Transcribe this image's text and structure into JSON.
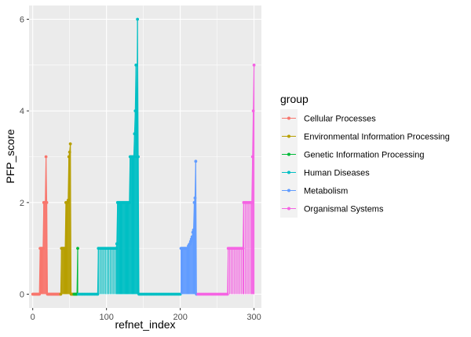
{
  "chart_data": {
    "type": "line",
    "xlabel": "refnet_index",
    "ylabel": "PFP_score",
    "xlim": [
      -5,
      310
    ],
    "ylim": [
      -0.3,
      6.3
    ],
    "x_ticks": [
      0,
      100,
      200,
      300
    ],
    "y_ticks": [
      0,
      2,
      4,
      6
    ],
    "grid": true,
    "legend": {
      "title": "group",
      "position": "right"
    },
    "series": [
      {
        "name": "Cellular Processes",
        "color": "#F8766D",
        "x": [
          0,
          1,
          2,
          3,
          4,
          5,
          6,
          7,
          8,
          9,
          10,
          11,
          12,
          13,
          14,
          15,
          16,
          17,
          18,
          19,
          20,
          21,
          22,
          23,
          24,
          25,
          26,
          27,
          28,
          29,
          30,
          31,
          32,
          33,
          34,
          35,
          36,
          37
        ],
        "y": [
          0,
          0,
          0,
          0,
          0,
          0,
          0,
          0,
          0,
          0,
          1,
          1,
          1,
          1,
          1,
          2,
          2,
          2,
          3,
          2,
          0,
          0,
          0,
          0,
          0,
          0,
          0,
          0,
          0,
          0,
          0,
          0,
          0,
          0,
          0,
          0,
          0,
          0
        ]
      },
      {
        "name": "Environmental Information Processing",
        "color": "#B79F00",
        "x": [
          38,
          39,
          40,
          41,
          42,
          43,
          44,
          45,
          46,
          47,
          48,
          49,
          50,
          51,
          52,
          53,
          54,
          55
        ],
        "y": [
          0,
          1,
          1,
          1,
          1,
          1,
          1,
          2,
          2,
          2,
          2.05,
          3,
          3.1,
          3.28,
          0,
          0,
          0,
          0
        ]
      },
      {
        "name": "Genetic Information Processing",
        "color": "#00BA38",
        "x": [
          56,
          57,
          58,
          59,
          60,
          61
        ],
        "y": [
          0,
          0,
          0,
          0,
          0,
          1
        ]
      },
      {
        "name": "Human Diseases",
        "color": "#00BFC4",
        "x": [
          62,
          64,
          66,
          68,
          70,
          72,
          74,
          76,
          78,
          80,
          82,
          84,
          86,
          88,
          89,
          91,
          93,
          95,
          97,
          99,
          101,
          103,
          105,
          107,
          109,
          111,
          113,
          114,
          115,
          116,
          117,
          118,
          119,
          120,
          121,
          122,
          123,
          124,
          125,
          126,
          127,
          128,
          129,
          130,
          131,
          132,
          133,
          134,
          135,
          136,
          137,
          138,
          139,
          140,
          141,
          142,
          143,
          144,
          146,
          148,
          150,
          152,
          154,
          156,
          158,
          160,
          162,
          164,
          166,
          168,
          170,
          172,
          174,
          176,
          178,
          180,
          182,
          184,
          186,
          188,
          190,
          192,
          194,
          196,
          198,
          200
        ],
        "y": [
          0,
          0,
          0,
          0,
          0,
          0,
          0,
          0,
          0,
          0,
          0,
          0,
          0,
          0,
          1,
          1,
          1,
          1,
          1,
          1,
          1,
          1,
          1,
          1,
          1,
          1,
          1,
          1.1,
          2,
          2,
          2,
          2,
          2,
          2,
          2,
          2,
          2,
          2,
          2,
          2,
          2,
          2,
          2,
          2,
          2,
          3,
          3,
          3,
          3,
          3,
          3,
          3.5,
          4,
          5,
          3,
          6,
          3,
          0,
          0,
          0,
          0,
          0,
          0,
          0,
          0,
          0,
          0,
          0,
          0,
          0,
          0,
          0,
          0,
          0,
          0,
          0,
          0,
          0,
          0,
          0,
          0,
          0,
          0,
          0,
          0,
          0
        ]
      },
      {
        "name": "Metabolism",
        "color": "#619CFF",
        "x": [
          201,
          202,
          203,
          204,
          205,
          206,
          207,
          208,
          209,
          210,
          211,
          212,
          213,
          214,
          215,
          216,
          217,
          218,
          219,
          220,
          221,
          222
        ],
        "y": [
          1,
          1,
          1,
          1,
          1,
          1,
          1,
          1,
          1,
          1,
          1.05,
          1.08,
          1.1,
          1.15,
          1.2,
          1.25,
          1.35,
          1.4,
          2,
          2.1,
          2.9,
          0
        ]
      },
      {
        "name": "Organismal Systems",
        "color": "#F564E3",
        "x": [
          224,
          226,
          228,
          230,
          232,
          234,
          236,
          238,
          240,
          242,
          244,
          246,
          248,
          250,
          252,
          254,
          256,
          258,
          260,
          262,
          264,
          265,
          267,
          269,
          271,
          273,
          275,
          277,
          279,
          281,
          283,
          285,
          286,
          288,
          290,
          292,
          294,
          296,
          297,
          298,
          299,
          300
        ],
        "y": [
          0,
          0,
          0,
          0,
          0,
          0,
          0,
          0,
          0,
          0,
          0,
          0,
          0,
          0,
          0,
          0,
          0,
          0,
          0,
          0,
          0,
          1,
          1,
          1,
          1,
          1,
          1,
          1,
          1,
          1,
          1,
          1,
          2,
          2,
          2,
          2,
          2,
          2,
          2,
          3,
          4,
          5
        ]
      }
    ]
  }
}
